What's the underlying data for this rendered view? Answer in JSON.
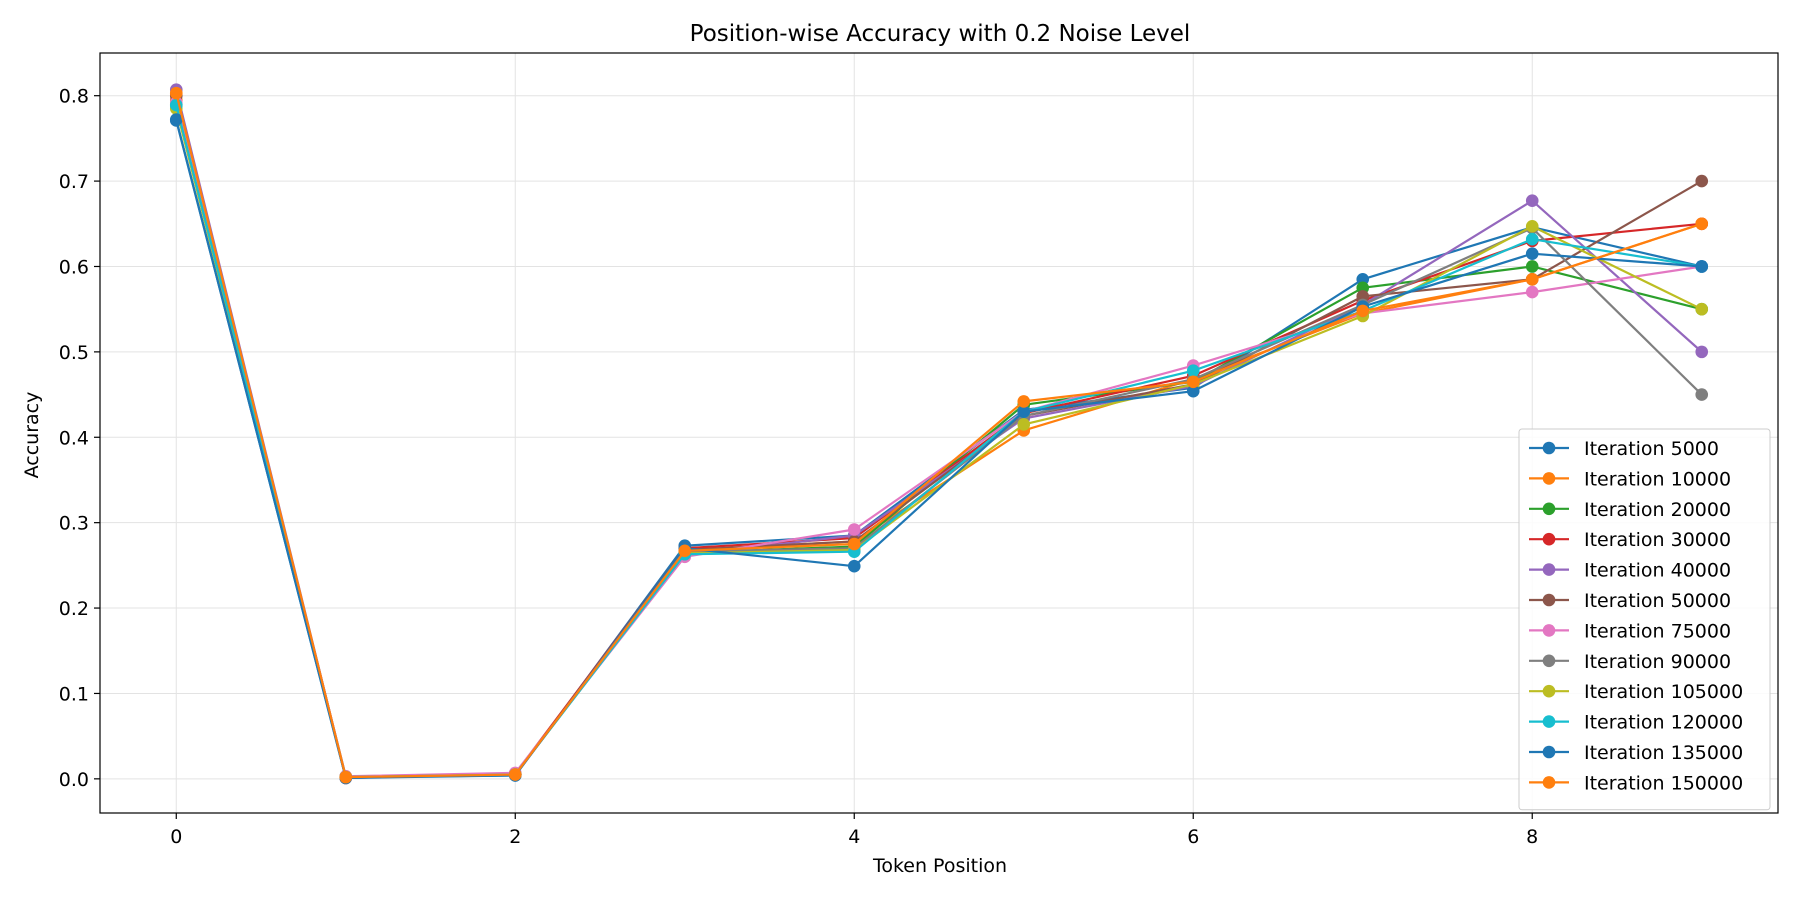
{
  "chart_data": {
    "type": "line",
    "title": "Position-wise Accuracy with 0.2 Noise Level",
    "xlabel": "Token Position",
    "ylabel": "Accuracy",
    "xlim": [
      -0.45,
      9.45
    ],
    "ylim": [
      -0.04,
      0.85
    ],
    "xticks": [
      0,
      2,
      4,
      6,
      8
    ],
    "yticks": [
      0.0,
      0.1,
      0.2,
      0.3,
      0.4,
      0.5,
      0.6,
      0.7,
      0.8
    ],
    "grid": true,
    "legend_position": "lower-right",
    "x": [
      0,
      1,
      2,
      3,
      4,
      5,
      6,
      7,
      8,
      9
    ],
    "series": [
      {
        "name": "Iteration 5000",
        "color": "#1f77b4",
        "values": [
          0.771,
          0.002,
          0.004,
          0.273,
          0.285,
          0.432,
          0.458,
          0.585,
          0.646,
          0.6
        ]
      },
      {
        "name": "Iteration 10000",
        "color": "#ff7f0e",
        "values": [
          0.795,
          0.003,
          0.005,
          0.268,
          0.278,
          0.408,
          0.468,
          0.545,
          0.585,
          0.65
        ]
      },
      {
        "name": "Iteration 20000",
        "color": "#2ca02c",
        "values": [
          0.79,
          0.002,
          0.005,
          0.265,
          0.272,
          0.438,
          0.465,
          0.575,
          0.6,
          0.55
        ]
      },
      {
        "name": "Iteration 30000",
        "color": "#d62728",
        "values": [
          0.802,
          0.001,
          0.006,
          0.27,
          0.282,
          0.428,
          0.472,
          0.56,
          0.63,
          0.65
        ]
      },
      {
        "name": "Iteration 40000",
        "color": "#9467bd",
        "values": [
          0.807,
          0.002,
          0.006,
          0.262,
          0.285,
          0.422,
          0.46,
          0.555,
          0.677,
          0.5
        ]
      },
      {
        "name": "Iteration 50000",
        "color": "#8c564b",
        "values": [
          0.8,
          0.002,
          0.005,
          0.268,
          0.278,
          0.425,
          0.462,
          0.565,
          0.585,
          0.7
        ]
      },
      {
        "name": "Iteration 75000",
        "color": "#e377c2",
        "values": [
          0.792,
          0.003,
          0.007,
          0.26,
          0.292,
          0.43,
          0.484,
          0.545,
          0.57,
          0.6
        ]
      },
      {
        "name": "Iteration 90000",
        "color": "#7f7f7f",
        "values": [
          0.788,
          0.002,
          0.005,
          0.266,
          0.27,
          0.425,
          0.468,
          0.555,
          0.645,
          0.45
        ]
      },
      {
        "name": "Iteration 105000",
        "color": "#bcbd22",
        "values": [
          0.785,
          0.002,
          0.005,
          0.264,
          0.268,
          0.415,
          0.462,
          0.542,
          0.647,
          0.55
        ]
      },
      {
        "name": "Iteration 120000",
        "color": "#17becf",
        "values": [
          0.789,
          0.002,
          0.005,
          0.263,
          0.266,
          0.43,
          0.478,
          0.548,
          0.632,
          0.6
        ]
      },
      {
        "name": "Iteration 135000",
        "color": "#1f77b4",
        "values": [
          0.772,
          0.001,
          0.004,
          0.27,
          0.249,
          0.43,
          0.454,
          0.553,
          0.615,
          0.6
        ]
      },
      {
        "name": "Iteration 150000",
        "color": "#ff7f0e",
        "values": [
          0.803,
          0.002,
          0.005,
          0.267,
          0.275,
          0.442,
          0.465,
          0.548,
          0.585,
          0.65
        ]
      }
    ]
  }
}
